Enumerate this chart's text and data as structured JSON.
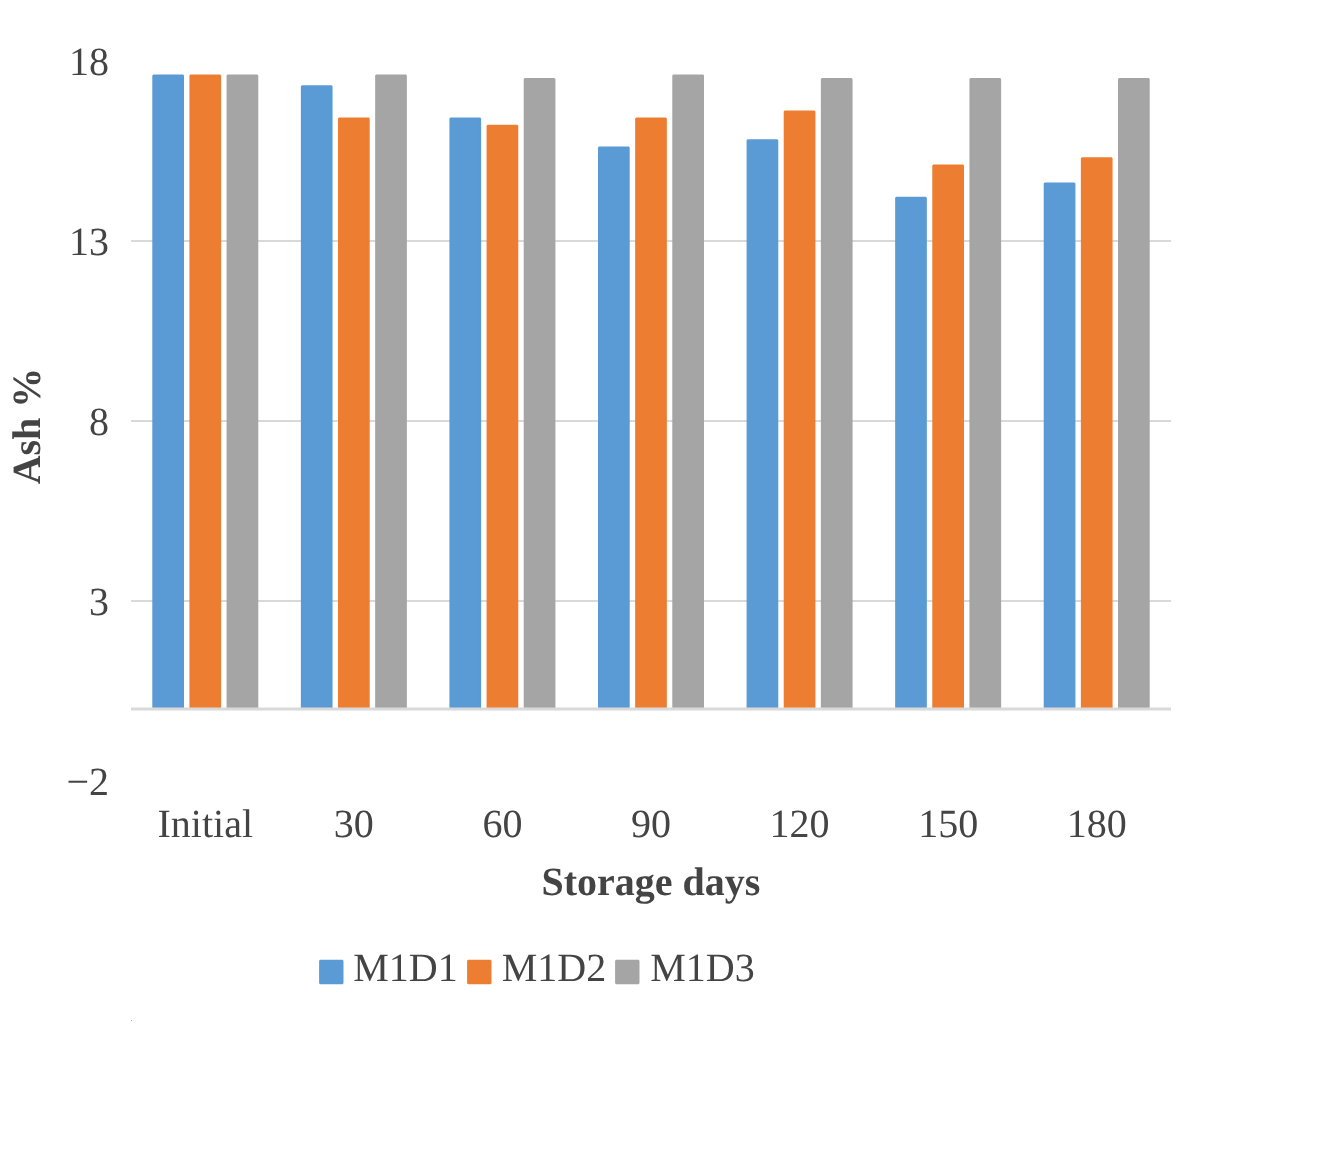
{
  "chart_data": {
    "type": "bar",
    "xlabel": "Storage days",
    "ylabel": "Ash  %",
    "categories": [
      "Initial",
      "30",
      "60",
      "90",
      "120",
      "150",
      "180"
    ],
    "series": [
      {
        "name": "M1D1",
        "color": "#5b9bd5",
        "values": [
          17.6,
          17.3,
          16.4,
          15.6,
          15.8,
          14.2,
          14.6
        ]
      },
      {
        "name": "M1D2",
        "color": "#ed7d31",
        "values": [
          17.6,
          16.4,
          16.2,
          16.4,
          16.6,
          15.1,
          15.3
        ]
      },
      {
        "name": "M1D3",
        "color": "#a5a5a5",
        "values": [
          17.6,
          17.6,
          17.5,
          17.6,
          17.5,
          17.5,
          17.5
        ]
      }
    ],
    "ylim": [
      -2,
      18
    ],
    "yticks": [
      -2,
      3,
      8,
      13,
      18
    ],
    "grid": "y",
    "legend": "bottom"
  }
}
